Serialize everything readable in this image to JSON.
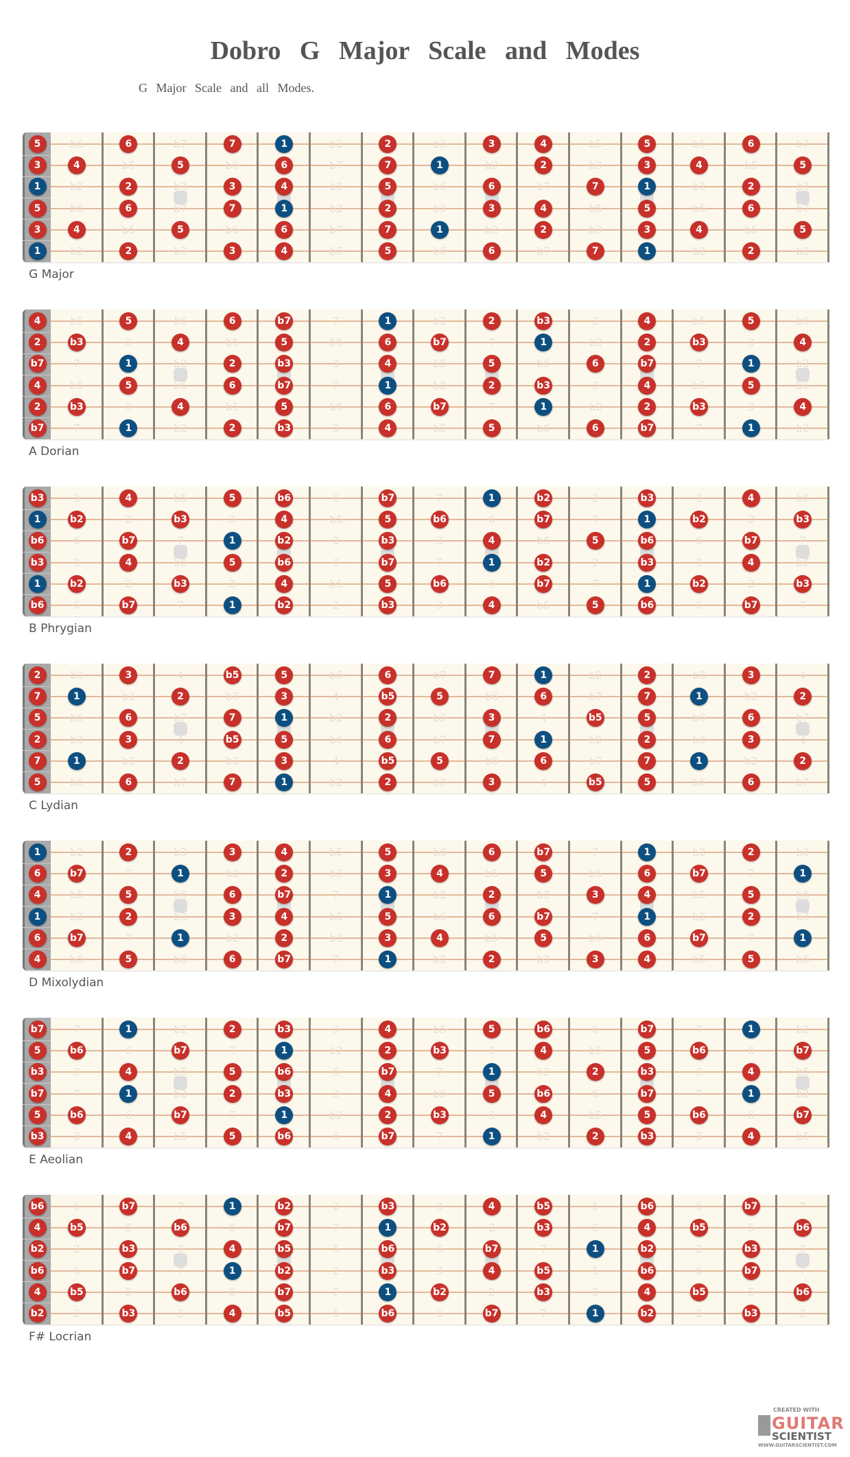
{
  "title": "Dobro G Major Scale and Modes",
  "subtitle": "G Major Scale and all Modes.",
  "colors": {
    "scale_note": "#c8302a",
    "root_note": "#0d4f80",
    "outside_note": "#e3ddd2",
    "fretboard": "#fdf8ec",
    "nut": "#a9a9a9"
  },
  "root_label": "1",
  "inlay_frets": [
    3,
    5,
    7,
    9,
    12,
    15
  ],
  "diagrams": [
    {
      "name": "G Major",
      "scale": [
        "1",
        "2",
        "3",
        "4",
        "5",
        "6",
        "7"
      ],
      "rows": [
        [
          "5",
          "b6",
          "6",
          "b7",
          "7",
          "1",
          "b2",
          "2",
          "b3",
          "3",
          "4",
          "b5",
          "5",
          "b6",
          "6",
          "b7"
        ],
        [
          "3",
          "4",
          "b5",
          "5",
          "b6",
          "6",
          "b7",
          "7",
          "1",
          "b2",
          "2",
          "b3",
          "3",
          "4",
          "b5",
          "5"
        ],
        [
          "1",
          "b2",
          "2",
          "b3",
          "3",
          "4",
          "b5",
          "5",
          "b6",
          "6",
          "b7",
          "7",
          "1",
          "b2",
          "2",
          "b3"
        ],
        [
          "5",
          "b6",
          "6",
          "b7",
          "7",
          "1",
          "b2",
          "2",
          "b3",
          "3",
          "4",
          "b5",
          "5",
          "b6",
          "6",
          "b7"
        ],
        [
          "3",
          "4",
          "b5",
          "5",
          "b6",
          "6",
          "b7",
          "7",
          "1",
          "b2",
          "2",
          "b3",
          "3",
          "4",
          "b5",
          "5"
        ],
        [
          "1",
          "b2",
          "2",
          "b3",
          "3",
          "4",
          "b5",
          "5",
          "b6",
          "6",
          "b7",
          "7",
          "1",
          "b2",
          "2",
          "b3"
        ]
      ]
    },
    {
      "name": "A Dorian",
      "scale": [
        "1",
        "2",
        "b3",
        "4",
        "5",
        "6",
        "b7"
      ],
      "rows": [
        [
          "4",
          "b5",
          "5",
          "b6",
          "6",
          "b7",
          "7",
          "1",
          "b2",
          "2",
          "b3",
          "3",
          "4",
          "b5",
          "5",
          "b6"
        ],
        [
          "2",
          "b3",
          "3",
          "4",
          "b5",
          "5",
          "b6",
          "6",
          "b7",
          "7",
          "1",
          "b2",
          "2",
          "b3",
          "3",
          "4"
        ],
        [
          "b7",
          "7",
          "1",
          "b2",
          "2",
          "b3",
          "3",
          "4",
          "b5",
          "5",
          "b6",
          "6",
          "b7",
          "7",
          "1",
          "b2"
        ],
        [
          "4",
          "b5",
          "5",
          "b6",
          "6",
          "b7",
          "7",
          "1",
          "b2",
          "2",
          "b3",
          "3",
          "4",
          "b5",
          "5",
          "b6"
        ],
        [
          "2",
          "b3",
          "3",
          "4",
          "b5",
          "5",
          "b6",
          "6",
          "b7",
          "7",
          "1",
          "b2",
          "2",
          "b3",
          "3",
          "4"
        ],
        [
          "b7",
          "7",
          "1",
          "b2",
          "2",
          "b3",
          "3",
          "4",
          "b5",
          "5",
          "b6",
          "6",
          "b7",
          "7",
          "1",
          "b2"
        ]
      ]
    },
    {
      "name": "B Phrygian",
      "scale": [
        "1",
        "b2",
        "b3",
        "4",
        "5",
        "b6",
        "b7"
      ],
      "rows": [
        [
          "b3",
          "3",
          "4",
          "b5",
          "5",
          "b6",
          "6",
          "b7",
          "7",
          "1",
          "b2",
          "2",
          "b3",
          "3",
          "4",
          "b5"
        ],
        [
          "1",
          "b2",
          "2",
          "b3",
          "3",
          "4",
          "b5",
          "5",
          "b6",
          "6",
          "b7",
          "7",
          "1",
          "b2",
          "2",
          "b3"
        ],
        [
          "b6",
          "6",
          "b7",
          "7",
          "1",
          "b2",
          "2",
          "b3",
          "3",
          "4",
          "b5",
          "5",
          "b6",
          "6",
          "b7",
          "7"
        ],
        [
          "b3",
          "3",
          "4",
          "b5",
          "5",
          "b6",
          "6",
          "b7",
          "7",
          "1",
          "b2",
          "2",
          "b3",
          "3",
          "4",
          "b5"
        ],
        [
          "1",
          "b2",
          "2",
          "b3",
          "3",
          "4",
          "b5",
          "5",
          "b6",
          "6",
          "b7",
          "7",
          "1",
          "b2",
          "2",
          "b3"
        ],
        [
          "b6",
          "6",
          "b7",
          "7",
          "1",
          "b2",
          "2",
          "b3",
          "3",
          "4",
          "b5",
          "5",
          "b6",
          "6",
          "b7",
          "7"
        ]
      ]
    },
    {
      "name": "C Lydian",
      "scale": [
        "1",
        "2",
        "3",
        "b5",
        "5",
        "6",
        "7"
      ],
      "rows": [
        [
          "2",
          "b3",
          "3",
          "4",
          "b5",
          "5",
          "b6",
          "6",
          "b7",
          "7",
          "1",
          "b2",
          "2",
          "b3",
          "3",
          "4"
        ],
        [
          "7",
          "1",
          "b2",
          "2",
          "b3",
          "3",
          "4",
          "b5",
          "5",
          "b6",
          "6",
          "b7",
          "7",
          "1",
          "b2",
          "2"
        ],
        [
          "5",
          "b6",
          "6",
          "b7",
          "7",
          "1",
          "b2",
          "2",
          "b3",
          "3",
          "4",
          "b5",
          "5",
          "b6",
          "6",
          "b7"
        ],
        [
          "2",
          "b3",
          "3",
          "4",
          "b5",
          "5",
          "b6",
          "6",
          "b7",
          "7",
          "1",
          "b2",
          "2",
          "b3",
          "3",
          "4"
        ],
        [
          "7",
          "1",
          "b2",
          "2",
          "b3",
          "3",
          "4",
          "b5",
          "5",
          "b6",
          "6",
          "b7",
          "7",
          "1",
          "b2",
          "2"
        ],
        [
          "5",
          "b6",
          "6",
          "b7",
          "7",
          "1",
          "b2",
          "2",
          "b3",
          "3",
          "4",
          "b5",
          "5",
          "b6",
          "6",
          "b7"
        ]
      ]
    },
    {
      "name": "D Mixolydian",
      "scale": [
        "1",
        "2",
        "3",
        "4",
        "5",
        "6",
        "b7"
      ],
      "rows": [
        [
          "1",
          "b2",
          "2",
          "b3",
          "3",
          "4",
          "b5",
          "5",
          "b6",
          "6",
          "b7",
          "7",
          "1",
          "b2",
          "2",
          "b3"
        ],
        [
          "6",
          "b7",
          "7",
          "1",
          "b2",
          "2",
          "b3",
          "3",
          "4",
          "b5",
          "5",
          "b6",
          "6",
          "b7",
          "7",
          "1"
        ],
        [
          "4",
          "b5",
          "5",
          "b6",
          "6",
          "b7",
          "7",
          "1",
          "b2",
          "2",
          "b3",
          "3",
          "4",
          "b5",
          "5",
          "b6"
        ],
        [
          "1",
          "b2",
          "2",
          "b3",
          "3",
          "4",
          "b5",
          "5",
          "b6",
          "6",
          "b7",
          "7",
          "1",
          "b2",
          "2",
          "b3"
        ],
        [
          "6",
          "b7",
          "7",
          "1",
          "b2",
          "2",
          "b3",
          "3",
          "4",
          "b5",
          "5",
          "b6",
          "6",
          "b7",
          "7",
          "1"
        ],
        [
          "4",
          "b5",
          "5",
          "b6",
          "6",
          "b7",
          "7",
          "1",
          "b2",
          "2",
          "b3",
          "3",
          "4",
          "b5",
          "5",
          "b6"
        ]
      ]
    },
    {
      "name": "E Aeolian",
      "scale": [
        "1",
        "2",
        "b3",
        "4",
        "5",
        "b6",
        "b7"
      ],
      "rows": [
        [
          "b7",
          "7",
          "1",
          "b2",
          "2",
          "b3",
          "3",
          "4",
          "b5",
          "5",
          "b6",
          "6",
          "b7",
          "7",
          "1",
          "b2"
        ],
        [
          "5",
          "b6",
          "6",
          "b7",
          "7",
          "1",
          "b2",
          "2",
          "b3",
          "3",
          "4",
          "b5",
          "5",
          "b6",
          "6",
          "b7"
        ],
        [
          "b3",
          "3",
          "4",
          "b5",
          "5",
          "b6",
          "6",
          "b7",
          "7",
          "1",
          "b2",
          "2",
          "b3",
          "3",
          "4",
          "b5"
        ],
        [
          "b7",
          "7",
          "1",
          "b2",
          "2",
          "b3",
          "3",
          "4",
          "b5",
          "5",
          "b6",
          "6",
          "b7",
          "7",
          "1",
          "b2"
        ],
        [
          "5",
          "b6",
          "6",
          "b7",
          "7",
          "1",
          "b2",
          "2",
          "b3",
          "3",
          "4",
          "b5",
          "5",
          "b6",
          "6",
          "b7"
        ],
        [
          "b3",
          "3",
          "4",
          "b5",
          "5",
          "b6",
          "6",
          "b7",
          "7",
          "1",
          "b2",
          "2",
          "b3",
          "3",
          "4",
          "b5"
        ]
      ]
    },
    {
      "name": "F# Locrian",
      "scale": [
        "1",
        "b2",
        "b3",
        "4",
        "b5",
        "b6",
        "b7"
      ],
      "rows": [
        [
          "b6",
          "6",
          "b7",
          "7",
          "1",
          "b2",
          "2",
          "b3",
          "3",
          "4",
          "b5",
          "5",
          "b6",
          "6",
          "b7",
          "7"
        ],
        [
          "4",
          "b5",
          "5",
          "b6",
          "6",
          "b7",
          "7",
          "1",
          "b2",
          "2",
          "b3",
          "3",
          "4",
          "b5",
          "5",
          "b6"
        ],
        [
          "b2",
          "2",
          "b3",
          "3",
          "4",
          "b5",
          "5",
          "b6",
          "6",
          "b7",
          "7",
          "1",
          "b2",
          "2",
          "b3",
          "3"
        ],
        [
          "b6",
          "6",
          "b7",
          "7",
          "1",
          "b2",
          "2",
          "b3",
          "3",
          "4",
          "b5",
          "5",
          "b6",
          "6",
          "b7",
          "7"
        ],
        [
          "4",
          "b5",
          "5",
          "b6",
          "6",
          "b7",
          "7",
          "1",
          "b2",
          "2",
          "b3",
          "3",
          "4",
          "b5",
          "5",
          "b6"
        ],
        [
          "b2",
          "2",
          "b3",
          "3",
          "4",
          "b5",
          "5",
          "b6",
          "6",
          "b7",
          "7",
          "1",
          "b2",
          "2",
          "b3",
          "3"
        ]
      ]
    }
  ],
  "logo": {
    "created_with": "CREATED WITH",
    "line1": "GUITAR",
    "line2": "SCIENTIST",
    "url": "WWW.GUITARSCIENTIST.COM"
  }
}
